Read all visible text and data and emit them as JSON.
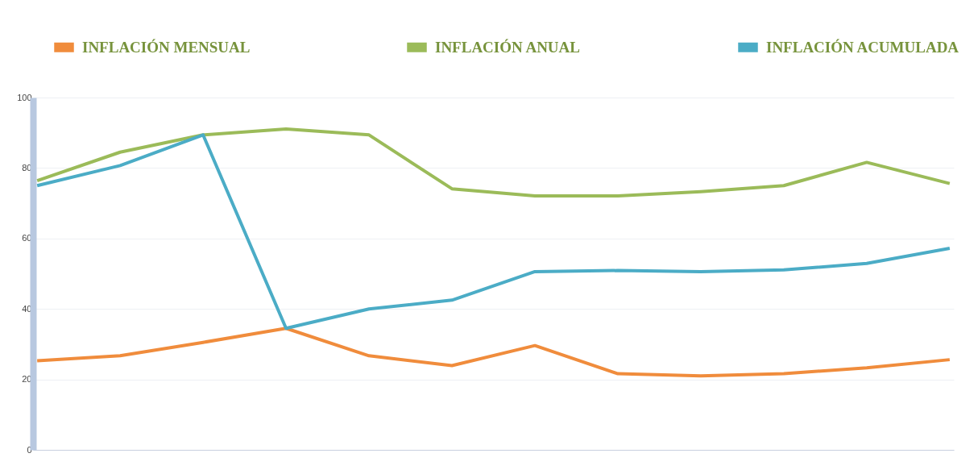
{
  "chart_data": {
    "type": "line",
    "categories": [
      null,
      null,
      null,
      null,
      null,
      null,
      null,
      null,
      null,
      null,
      null,
      null
    ],
    "series": [
      {
        "name": "INFLACIÓN MENSUAL",
        "color": "#f08c3c",
        "values": [
          25.3,
          26.7,
          30.5,
          34.5,
          26.7,
          23.9,
          29.6,
          21.6,
          21,
          21.6,
          23.3,
          25.6
        ]
      },
      {
        "name": "INFLACIÓN ANUAL",
        "color": "#9bbb59",
        "values": [
          76.4,
          84.5,
          89.4,
          91.1,
          89.4,
          74.1,
          72.1,
          72.1,
          73.3,
          75,
          81.6,
          75.6
        ]
      },
      {
        "name": "INFLACIÓN ACUMULADA",
        "color": "#4bacc6",
        "values": [
          75,
          80.7,
          89.4,
          34.5,
          40,
          42.5,
          50.6,
          50.9,
          50.6,
          51.1,
          52.9,
          57.2
        ]
      }
    ],
    "ylim": [
      0,
      100
    ],
    "yticks": [
      0,
      20,
      40,
      60,
      80,
      100
    ],
    "grid": "y",
    "legend": "top",
    "line_style": "solid",
    "marker": "none"
  }
}
